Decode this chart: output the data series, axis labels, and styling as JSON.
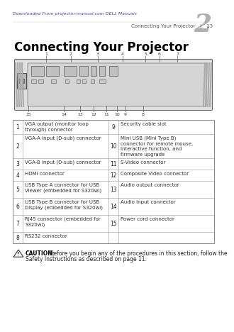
{
  "bg_color": "#ffffff",
  "chapter_number": "2",
  "title": "Connecting Your Projector",
  "table_rows": [
    [
      "1",
      "VGA output (monitor loop\nthrough) connector",
      "9",
      "Security cable slot"
    ],
    [
      "2",
      "VGA-A input (D-sub) connector",
      "10",
      "Mini USB (Mini Type B)\nconnector for remote mouse,\nInteractive function, and\nfirmware upgrade"
    ],
    [
      "3",
      "VGA-B input (D-sub) connector",
      "11",
      "S-Video connector"
    ],
    [
      "4",
      "HDMI connector",
      "12",
      "Composite Video connector"
    ],
    [
      "5",
      "USB Type A connector for USB\nViewer (embedded for S320wi)",
      "13",
      "Audio output connector"
    ],
    [
      "6",
      "USB Type B connector for USB\nDisplay (embedded for S320wi)",
      "14",
      "Audio input connector"
    ],
    [
      "7",
      "RJ45 connector (embedded for\nS320wi)",
      "15",
      "Power cord connector"
    ],
    [
      "8",
      "RS232 connector",
      "",
      ""
    ]
  ],
  "caution_bold": "CAUTION:",
  "caution_text": " Before you begin any of the procedures in this section, follow the\nSafety Instructions as described on page 11.",
  "footer_left": "Downloaded From projector-manual.com DELL Manuals",
  "footer_right": "Connecting Your Projector",
  "footer_page": "13",
  "footer_link_color": "#4444bb",
  "footer_right_color": "#555555"
}
